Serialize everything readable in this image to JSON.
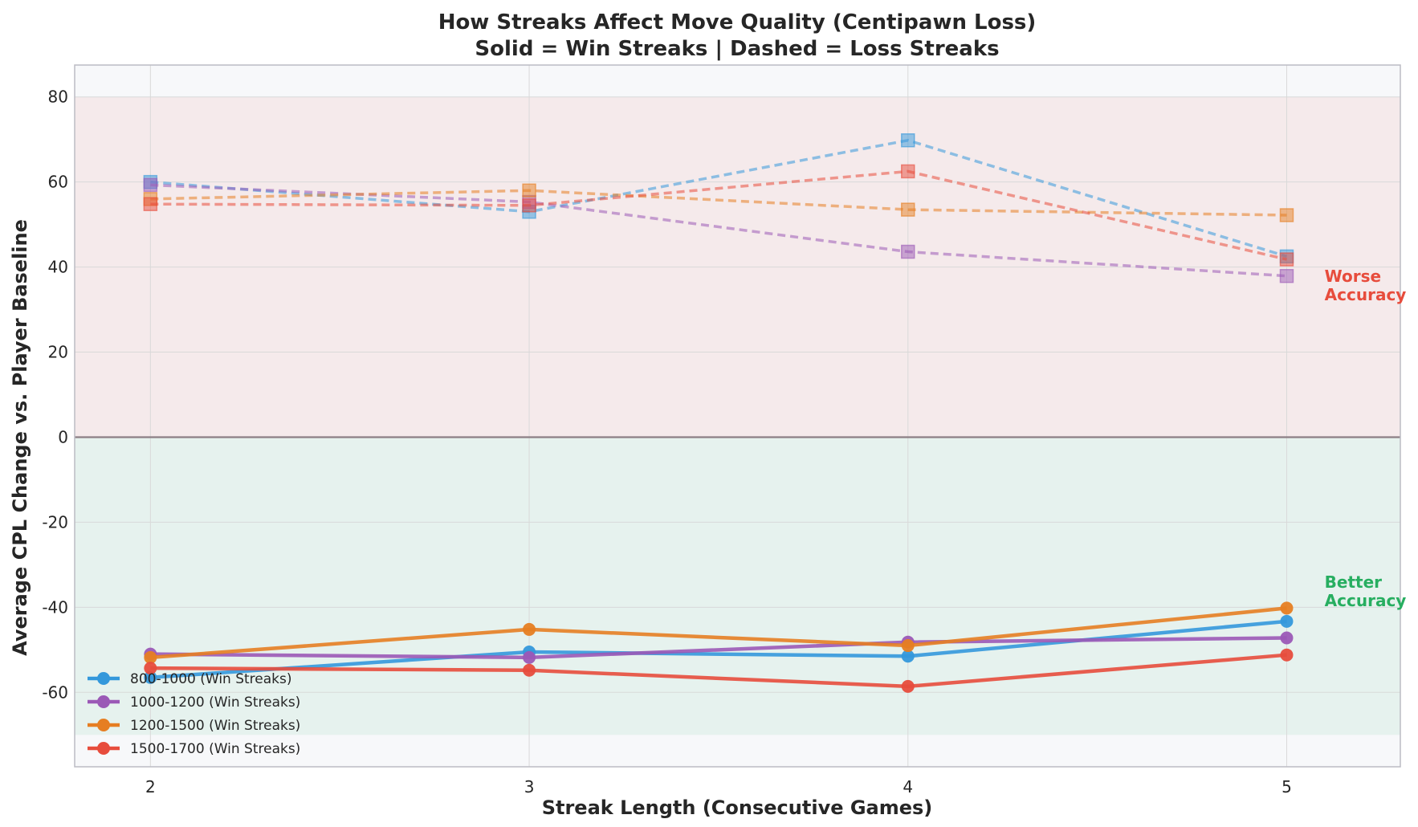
{
  "chart_data": {
    "type": "line",
    "title": "How Streaks Affect Move Quality (Centipawn Loss)",
    "subtitle": "Solid = Win Streaks | Dashed = Loss Streaks",
    "xlabel": "Streak Length (Consecutive Games)",
    "ylabel": "Average CPL Change vs. Player Baseline",
    "x": [
      2,
      3,
      4,
      5
    ],
    "xlim": [
      1.8,
      5.3
    ],
    "ylim": [
      -77.5,
      87.5
    ],
    "yticks": [
      -60,
      -40,
      -20,
      0,
      20,
      40,
      60,
      80
    ],
    "ytick_labels": [
      "-60",
      "-40",
      "-20",
      "0",
      "20",
      "40",
      "60",
      "80"
    ],
    "xticks": [
      2,
      3,
      4,
      5
    ],
    "xtick_labels": [
      "2",
      "3",
      "4",
      "5"
    ],
    "grid": true,
    "legend_position": "bottom-left",
    "bands": [
      {
        "y0": 0,
        "y1": 80,
        "color": "#e74c3c",
        "label": "Worse\nAccuracy",
        "label_color": "#e74c3c"
      },
      {
        "y0": -70,
        "y1": 0,
        "color": "#27ae60",
        "label": "Better\nAccuracy",
        "label_color": "#27ae60"
      }
    ],
    "annotations": [
      {
        "line1": "Worse",
        "line2": "Accuracy",
        "color": "#e74c3c"
      },
      {
        "line1": "Better",
        "line2": "Accuracy",
        "color": "#27ae60"
      }
    ],
    "series": [
      {
        "name": "800-1000 (Win Streaks)",
        "style": "solid",
        "marker": "circle",
        "color": "#3498db",
        "values": [
          -56.5,
          -50.5,
          -51.5,
          -43.3
        ],
        "in_legend": true
      },
      {
        "name": "1000-1200 (Win Streaks)",
        "style": "solid",
        "marker": "circle",
        "color": "#9b59b6",
        "values": [
          -51,
          -51.8,
          -48.2,
          -47.2
        ],
        "in_legend": true
      },
      {
        "name": "1200-1500 (Win Streaks)",
        "style": "solid",
        "marker": "circle",
        "color": "#e67e22",
        "values": [
          -51.8,
          -45.2,
          -49,
          -40.2
        ],
        "in_legend": true
      },
      {
        "name": "1500-1700 (Win Streaks)",
        "style": "solid",
        "marker": "circle",
        "color": "#e74c3c",
        "values": [
          -54.3,
          -54.8,
          -58.6,
          -51.2
        ],
        "in_legend": true
      },
      {
        "name": "",
        "style": "dashed",
        "marker": "square",
        "color": "#3498db",
        "values": [
          60,
          53,
          69.8,
          42.5
        ],
        "in_legend": false
      },
      {
        "name": "",
        "style": "dashed",
        "marker": "square",
        "color": "#9b59b6",
        "values": [
          59.3,
          55.3,
          43.6,
          37.9
        ],
        "in_legend": false
      },
      {
        "name": "",
        "style": "dashed",
        "marker": "square",
        "color": "#e67e22",
        "values": [
          56,
          58,
          53.5,
          52.2
        ],
        "in_legend": false
      },
      {
        "name": "",
        "style": "dashed",
        "marker": "square",
        "color": "#e74c3c",
        "values": [
          54.8,
          54.5,
          62.5,
          41.8
        ],
        "in_legend": false
      }
    ]
  }
}
